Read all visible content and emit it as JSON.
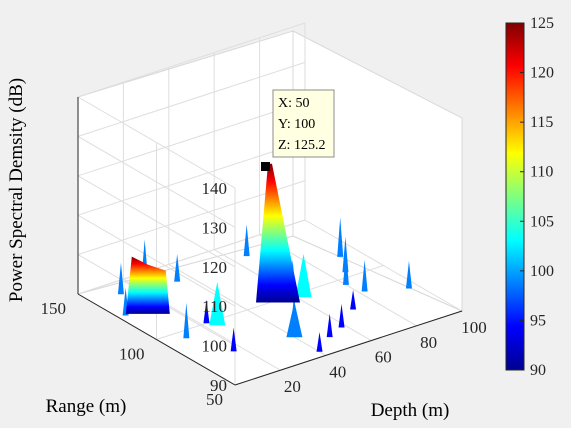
{
  "chart_data": {
    "type": "surface3d",
    "zlabel": "Power Spectral Demsity (dB)",
    "xlabel": "Depth (m)",
    "ylabel": "Range (m)",
    "xticks": [
      "20",
      "40",
      "60",
      "80",
      "100"
    ],
    "yticks": [
      "50",
      "100",
      "150"
    ],
    "zticks": [
      "90",
      "100",
      "110",
      "120",
      "130",
      "140"
    ],
    "xlim": [
      0,
      100
    ],
    "ylim": [
      50,
      150
    ],
    "zlim": [
      90,
      140
    ],
    "colormap": "jet",
    "clim": [
      90,
      125
    ],
    "colorbar_ticks": [
      "90",
      "95",
      "100",
      "105",
      "110",
      "115",
      "120",
      "125"
    ],
    "grid": true,
    "datatip": {
      "x_label": "X: 50",
      "y_label": "Y: 100",
      "z_label": "Z: 125.2",
      "x": 50,
      "y": 100,
      "z": 125.2
    },
    "peak": {
      "x": 50,
      "y": 100,
      "z": 125.2
    },
    "secondary_peak": {
      "x": 10,
      "y": 120,
      "z": 103
    },
    "surface_floor": 90
  },
  "colors": {
    "background": "#f0f0f0",
    "axes_face": "#ffffff",
    "grid": "#dedede",
    "marker": "#000000",
    "tip_background": "#ffffe1"
  }
}
